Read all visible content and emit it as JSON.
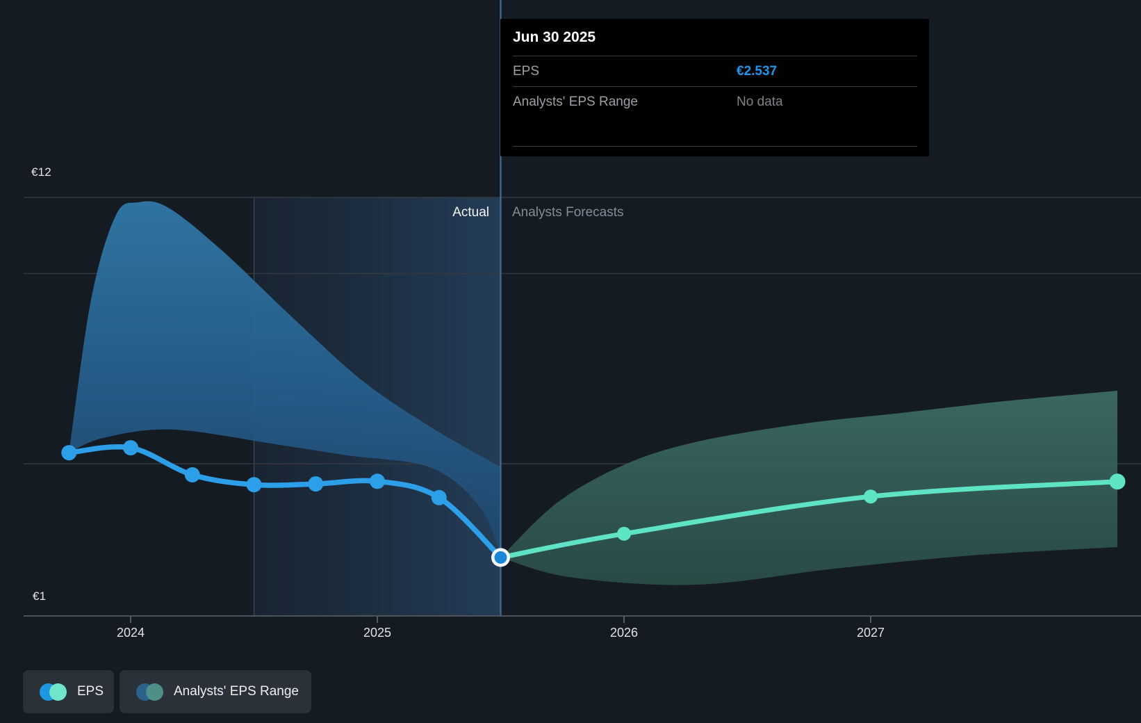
{
  "tooltip": {
    "title": "Jun 30 2025",
    "rows": [
      {
        "label": "EPS",
        "value": "€2.537"
      },
      {
        "label": "Analysts' EPS Range",
        "value": "No data"
      }
    ]
  },
  "legend": {
    "items": [
      {
        "label": "EPS",
        "chip_colors": [
          "#1f97e0",
          "#6fe5c9"
        ]
      },
      {
        "label": "Analysts' EPS Range",
        "chip_colors": [
          "#2d608b",
          "#4e9089"
        ]
      }
    ]
  },
  "colors": {
    "background": "#151b23",
    "eps_line": "#2d9ee8",
    "eps_forecast_line": "#5fe3c5",
    "current_dot_fill": "#1b86d8",
    "current_dot_ring": "#f4f8fa",
    "gridline": "#343a42",
    "axis_line": "#4d535a",
    "tick": "#565c63",
    "divider_line": "#38688f",
    "highlight_edge": "#6ea6d2"
  },
  "chart_data": {
    "type": "line",
    "title": "",
    "unit": "€",
    "grid": true,
    "legend_position": "bottom-left",
    "x_axis": {
      "tick_years": [
        2024,
        2025,
        2026,
        2027
      ],
      "tick_labels": [
        "2024",
        "2025",
        "2026",
        "2027"
      ],
      "range_years": [
        2023.56,
        2028.09
      ]
    },
    "y_axis": {
      "top_label": "€12",
      "bottom_label": "€1",
      "range": [
        1,
        12
      ],
      "gridline_values": [
        12,
        10,
        5
      ],
      "axis_value": 1
    },
    "divider": {
      "x_year": 2025.5,
      "date": "Jun 30 2025",
      "actual_label": "Actual",
      "forecast_label": "Analysts Forecasts",
      "highlight_from_year": 2024.5
    },
    "series": [
      {
        "name": "EPS (actual)",
        "type": "line",
        "color": "#2d9ee8",
        "points": [
          [
            2023.75,
            5.29
          ],
          [
            2024.0,
            5.42
          ],
          [
            2024.25,
            4.71
          ],
          [
            2024.5,
            4.45
          ],
          [
            2024.75,
            4.47
          ],
          [
            2025.0,
            4.54
          ],
          [
            2025.25,
            4.11
          ],
          [
            2025.5,
            2.537
          ]
        ]
      },
      {
        "name": "EPS (analysts forecast)",
        "type": "line",
        "color": "#5fe3c5",
        "points": [
          [
            2025.5,
            2.537
          ],
          [
            2026.0,
            3.16
          ],
          [
            2027.0,
            4.14
          ],
          [
            2028.0,
            4.53
          ]
        ]
      },
      {
        "name": "Analysts' EPS Range (historical)",
        "type": "band",
        "upper": [
          [
            2023.75,
            5.29
          ],
          [
            2023.84,
            9.33
          ],
          [
            2023.94,
            11.53
          ],
          [
            2024.03,
            11.87
          ],
          [
            2024.15,
            11.74
          ],
          [
            2024.37,
            10.61
          ],
          [
            2024.65,
            8.88
          ],
          [
            2024.94,
            7.18
          ],
          [
            2025.22,
            5.95
          ],
          [
            2025.5,
            4.91
          ]
        ],
        "lower": [
          [
            2023.75,
            5.29
          ],
          [
            2023.89,
            5.68
          ],
          [
            2024.17,
            5.9
          ],
          [
            2024.6,
            5.5
          ],
          [
            2024.88,
            5.22
          ],
          [
            2025.22,
            4.89
          ],
          [
            2025.42,
            3.83
          ],
          [
            2025.5,
            2.537
          ]
        ]
      },
      {
        "name": "Analysts' EPS Range (forecast)",
        "type": "band",
        "upper": [
          [
            2025.5,
            2.537
          ],
          [
            2025.73,
            3.98
          ],
          [
            2026.0,
            4.97
          ],
          [
            2026.29,
            5.57
          ],
          [
            2026.71,
            6.04
          ],
          [
            2027.13,
            6.34
          ],
          [
            2027.55,
            6.65
          ],
          [
            2028.0,
            6.92
          ]
        ],
        "lower": [
          [
            2025.5,
            2.537
          ],
          [
            2025.78,
            2.02
          ],
          [
            2026.29,
            1.82
          ],
          [
            2026.85,
            2.24
          ],
          [
            2027.41,
            2.59
          ],
          [
            2028.0,
            2.81
          ]
        ]
      }
    ]
  }
}
